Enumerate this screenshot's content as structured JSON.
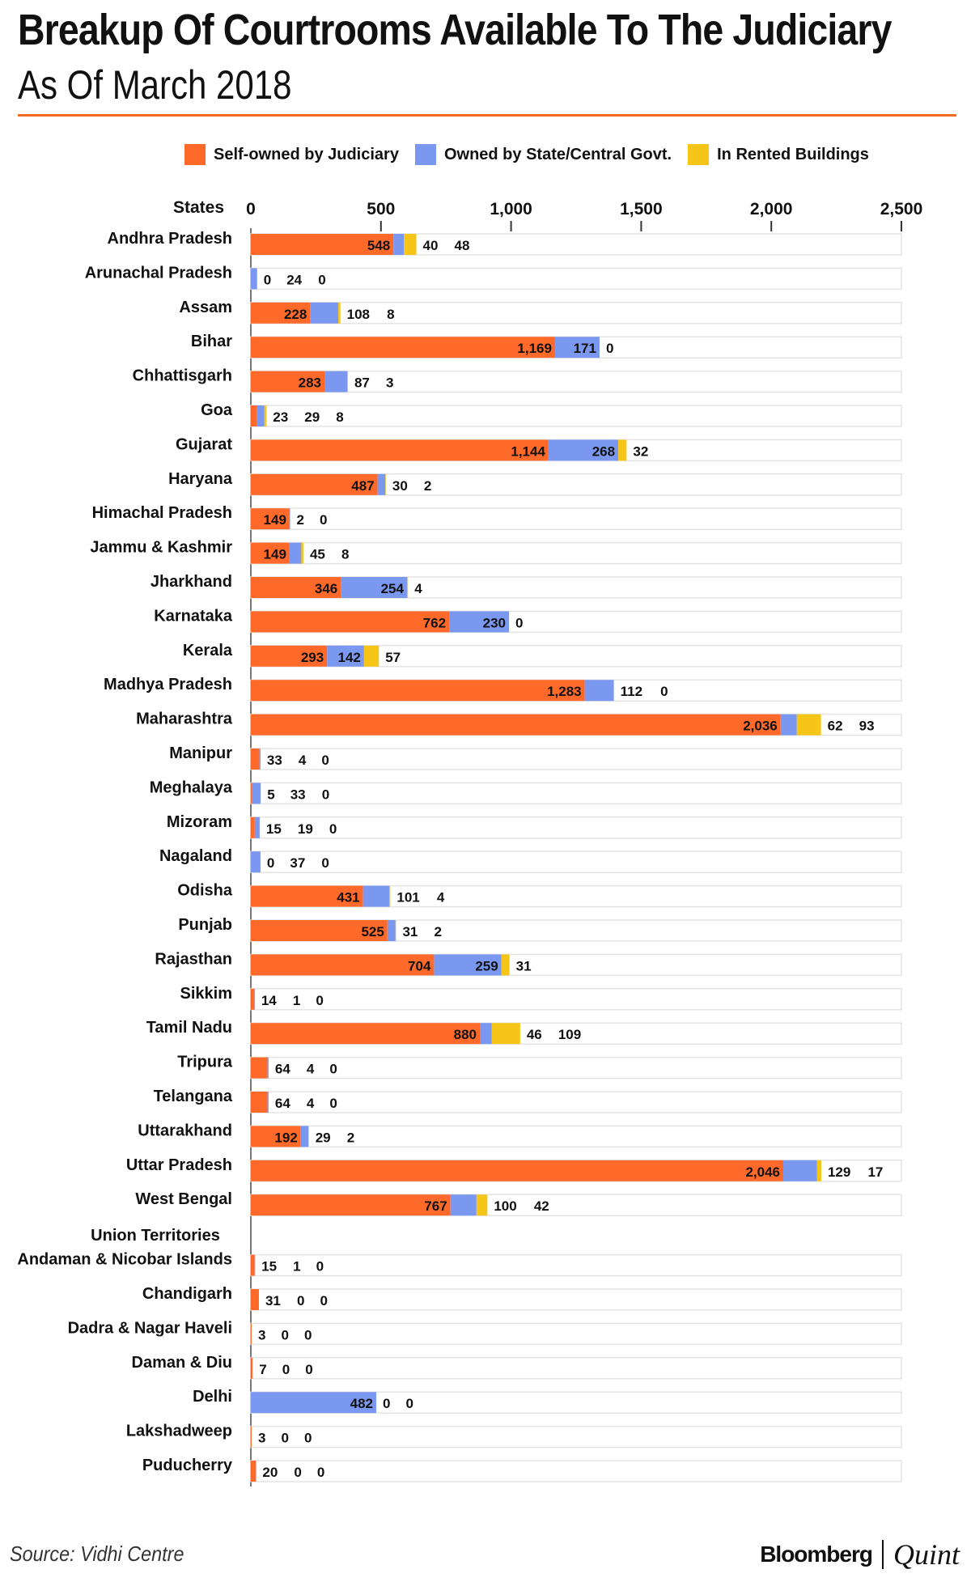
{
  "header": {
    "title": "Breakup Of Courtrooms Available To The Judiciary",
    "subtitle": "As Of March 2018"
  },
  "legend": [
    {
      "label": "Self-owned by Judiciary",
      "color": "#ff6a2b"
    },
    {
      "label": "Owned by State/Central Govt.",
      "color": "#7b98f0"
    },
    {
      "label": "In Rented Buildings",
      "color": "#f5c518"
    }
  ],
  "footer": {
    "source": "Source: Vidhi Centre",
    "brand_primary": "Bloomberg",
    "brand_secondary": "Quint"
  },
  "chart_data": {
    "type": "bar",
    "orientation": "horizontal",
    "stacked": true,
    "category_header": "States",
    "section_header": "Union Territories",
    "xlim": [
      0,
      2500
    ],
    "xticks": [
      0,
      500,
      1000,
      1500,
      2000,
      2500
    ],
    "grid": false,
    "legend_position": "top",
    "categories": [
      "Andhra Pradesh",
      "Arunachal Pradesh",
      "Assam",
      "Bihar",
      "Chhattisgarh",
      "Goa",
      "Gujarat",
      "Haryana",
      "Himachal Pradesh",
      "Jammu & Kashmir",
      "Jharkhand",
      "Karnataka",
      "Kerala",
      "Madhya Pradesh",
      "Maharashtra",
      "Manipur",
      "Meghalaya",
      "Mizoram",
      "Nagaland",
      "Odisha",
      "Punjab",
      "Rajasthan",
      "Sikkim",
      "Tamil Nadu",
      "Tripura",
      "Telangana",
      "Uttarakhand",
      "Uttar Pradesh",
      "West Bengal",
      "Andaman & Nicobar Islands",
      "Chandigarh",
      "Dadra & Nagar Haveli",
      "Daman & Diu",
      "Delhi",
      "Lakshadweep",
      "Puducherry"
    ],
    "series": [
      {
        "name": "Self-owned by Judiciary",
        "values": [
          548,
          0,
          228,
          1169,
          283,
          23,
          1144,
          487,
          149,
          149,
          346,
          762,
          293,
          1283,
          2036,
          33,
          5,
          15,
          0,
          431,
          525,
          704,
          14,
          880,
          64,
          64,
          192,
          2046,
          767,
          15,
          31,
          3,
          7,
          0,
          3,
          20
        ]
      },
      {
        "name": "Owned by State/Central Govt.",
        "values": [
          40,
          24,
          108,
          171,
          87,
          29,
          268,
          30,
          2,
          45,
          254,
          230,
          142,
          112,
          62,
          4,
          33,
          19,
          37,
          101,
          31,
          259,
          1,
          46,
          4,
          4,
          29,
          129,
          100,
          1,
          0,
          0,
          0,
          482,
          0,
          0
        ]
      },
      {
        "name": "In Rented Buildings",
        "values": [
          48,
          0,
          8,
          0,
          3,
          8,
          32,
          2,
          0,
          8,
          4,
          0,
          57,
          0,
          93,
          0,
          0,
          0,
          0,
          4,
          2,
          31,
          0,
          109,
          0,
          0,
          2,
          17,
          42,
          0,
          0,
          0,
          0,
          0,
          0,
          0
        ]
      }
    ]
  }
}
